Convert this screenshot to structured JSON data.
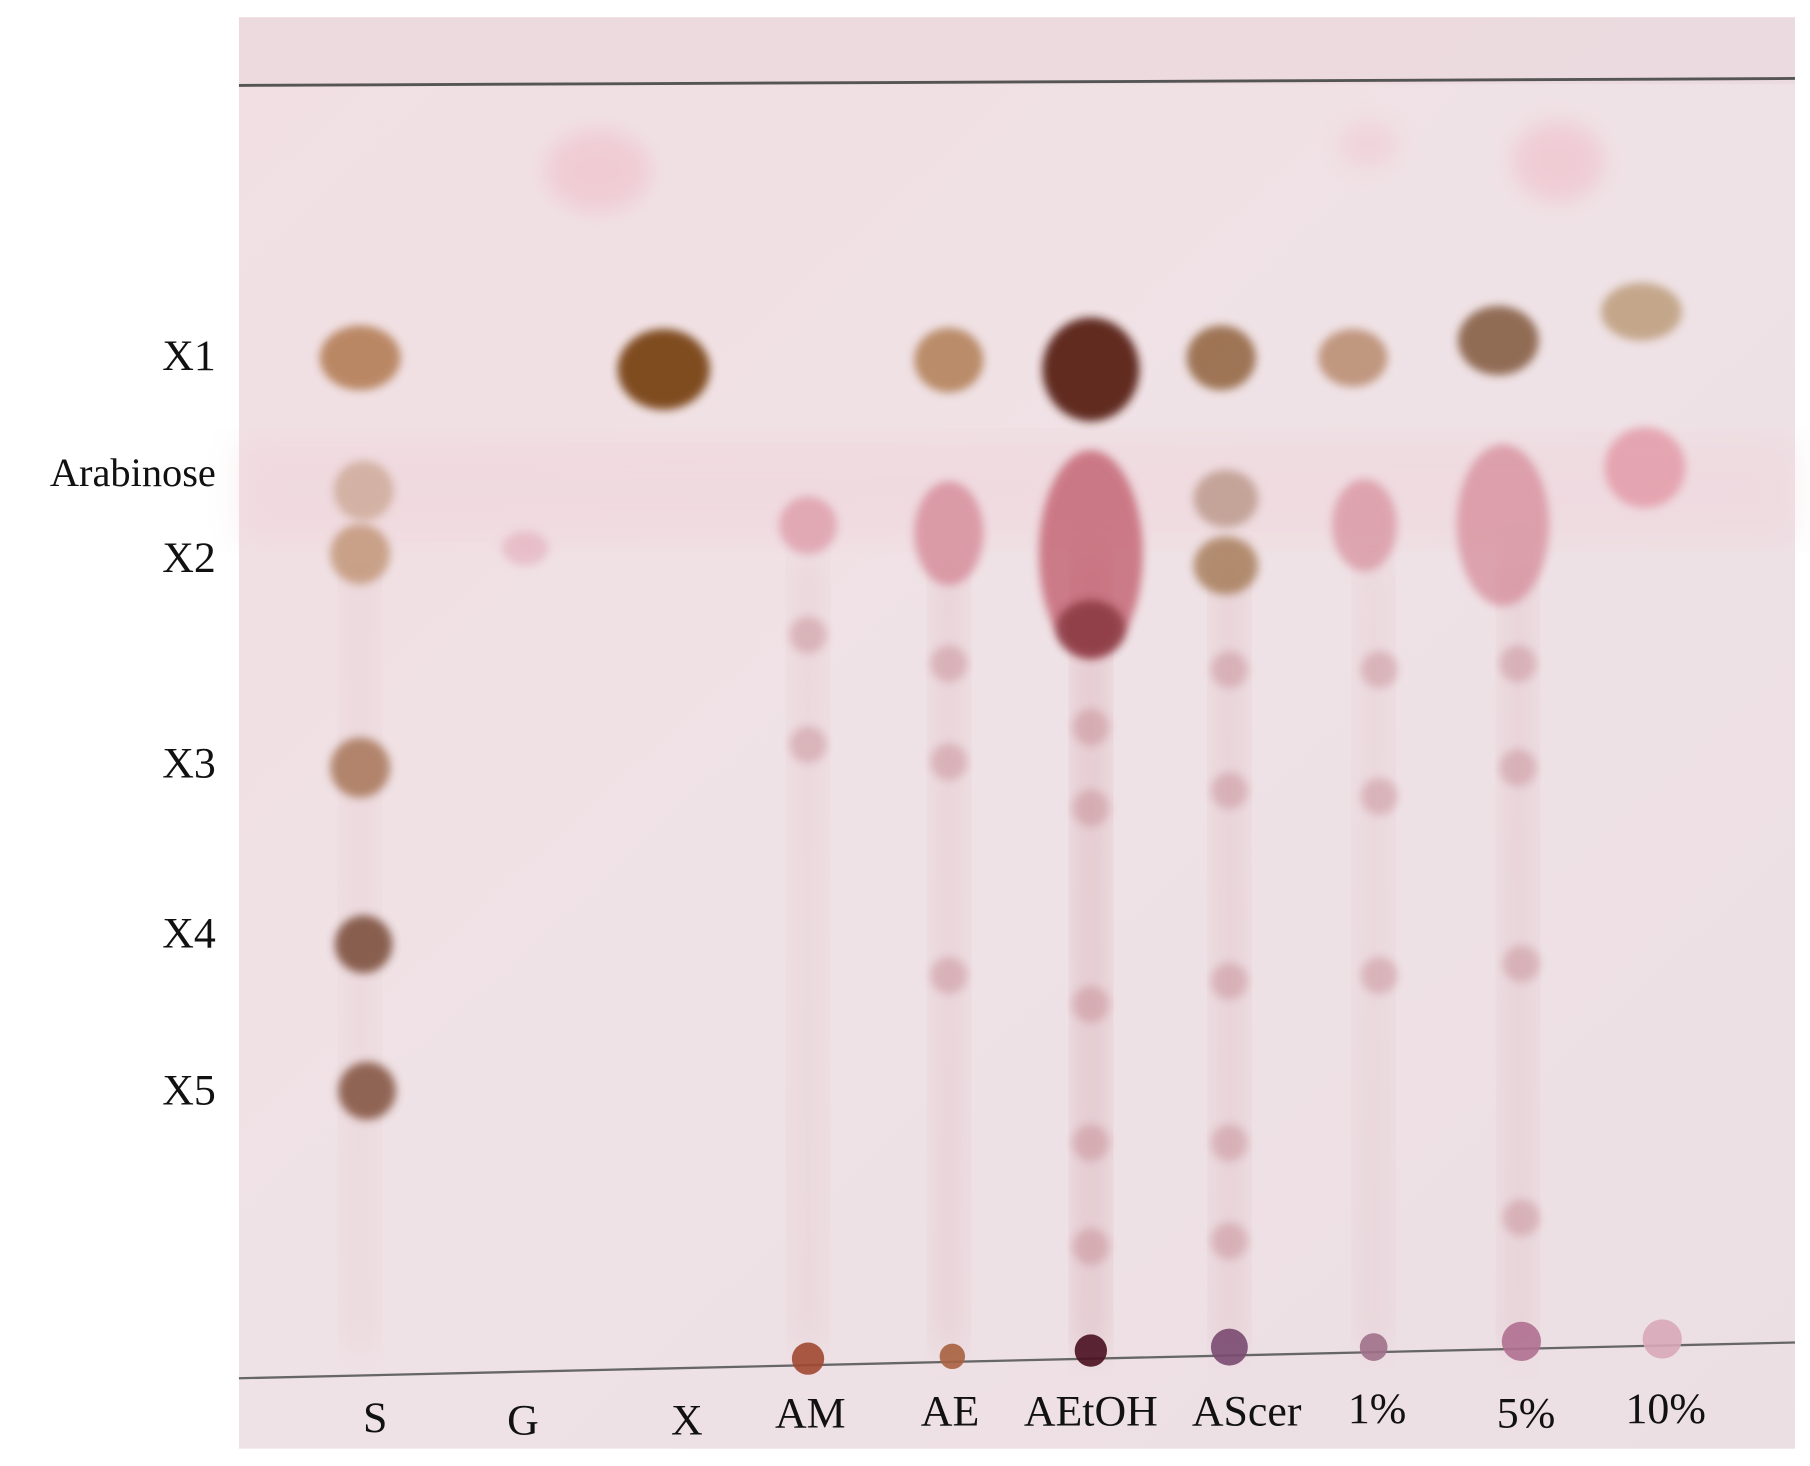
{
  "row_labels": [
    "X1",
    "Arabinose",
    "X2",
    "X3",
    "X4",
    "X5"
  ],
  "lane_labels": [
    "S",
    "G",
    "X",
    "AM",
    "AE",
    "AEtOH",
    "AScer",
    "1%",
    "5%",
    "10%"
  ]
}
